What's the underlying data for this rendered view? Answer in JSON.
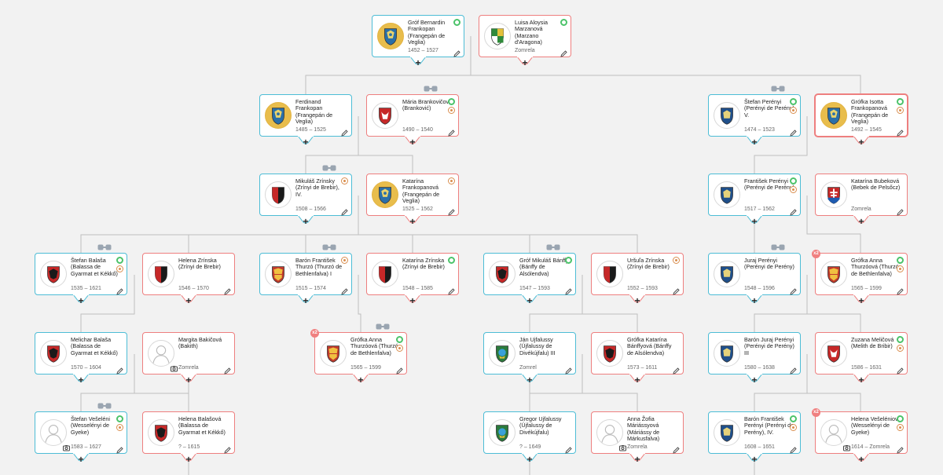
{
  "people": [
    {
      "id": "p1",
      "name": "Gróf Bernardin Frankopan (Frangepán de Veglia)",
      "dates": "1452 – 1527",
      "gender": "m",
      "crest": "gold-shield",
      "badges": [
        "green"
      ]
    },
    {
      "id": "p2",
      "name": "Luisa Aloysia Marzanová (Marzano d'Aragona)",
      "dates": "Zomrela",
      "gender": "f",
      "crest": "green-shield",
      "badges": [
        "green"
      ]
    },
    {
      "id": "p3",
      "name": "Ferdinand Frankopan (Frangepán de Veglia)",
      "dates": "1485 – 1525",
      "gender": "m",
      "crest": "gold-shield",
      "badges": []
    },
    {
      "id": "p4",
      "name": "Mária Brankovičová (Branković)",
      "dates": "1490 – 1540",
      "gender": "f",
      "crest": "red-eagle",
      "badges": [
        "green",
        "brown"
      ]
    },
    {
      "id": "p5",
      "name": "Štefan Perényi (Perényi de Perény), V.",
      "dates": "1474 – 1523",
      "gender": "m",
      "crest": "blue-shield",
      "badges": [
        "green",
        "brown"
      ]
    },
    {
      "id": "p6",
      "name": "Grófka Isotta Frankopanová (Frangepán de Veglia)",
      "dates": "1492 – 1545",
      "gender": "f",
      "crest": "gold-shield",
      "badges": [
        "green",
        "brown"
      ]
    },
    {
      "id": "p7",
      "name": "Mikuláš Zrínsky (Zrínyi de Brebir), IV.",
      "dates": "1508 – 1566",
      "gender": "m",
      "crest": "red-shield",
      "badges": [
        "brown-top"
      ]
    },
    {
      "id": "p8",
      "name": "Katarína Frankopanová (Frangepán de Veglia)",
      "dates": "1525 – 1562",
      "gender": "f",
      "crest": "gold-shield",
      "badges": [
        "brown-top"
      ]
    },
    {
      "id": "p9",
      "name": "František Perényi (Perényi de Perény)",
      "dates": "1517 – 1562",
      "gender": "m",
      "crest": "blue-shield",
      "badges": [
        "green",
        "brown"
      ]
    },
    {
      "id": "p10",
      "name": "Katarína Bubeková (Bebek de Pelsőcz)",
      "dates": "Zomrela",
      "gender": "f",
      "crest": "white-cross",
      "badges": []
    },
    {
      "id": "p11",
      "name": "Štefan Balaša (Balassa de Gyarmat et Kékkő)",
      "dates": "1535 – 1621",
      "gender": "m",
      "crest": "red-eagle2",
      "badges": [
        "green",
        "brown"
      ]
    },
    {
      "id": "p12",
      "name": "Helena Zrínska (Zrínyi de Brebir)",
      "dates": "1546 – 1570",
      "gender": "f",
      "crest": "red-shield",
      "badges": []
    },
    {
      "id": "p13",
      "name": "Barón František Thurzó (Thurzó de Bethlenfalva) I",
      "dates": "1515 – 1574",
      "gender": "m",
      "crest": "gold-lion",
      "badges": [
        "brown-top"
      ]
    },
    {
      "id": "p14",
      "name": "Katarína Zrínska (Zrínyi de Brebir)",
      "dates": "1548 – 1585",
      "gender": "f",
      "crest": "red-shield",
      "badges": [
        "green"
      ]
    },
    {
      "id": "p15",
      "name": "Gróf Mikuláš Bánffy (Bánffy de Alsólendva)",
      "dates": "1547 – 1593",
      "gender": "m",
      "crest": "red-eagle2",
      "badges": [
        "green"
      ]
    },
    {
      "id": "p16",
      "name": "Uršuľa Zrínska (Zrínyi de Brebir)",
      "dates": "1552 – 1593",
      "gender": "f",
      "crest": "red-shield",
      "badges": [
        "brown-top"
      ]
    },
    {
      "id": "p17",
      "name": "Juraj Perényi (Perényi de Perény)",
      "dates": "1548 – 1596",
      "gender": "m",
      "crest": "blue-shield",
      "badges": []
    },
    {
      "id": "p18",
      "name": "Grófka Anna Thurzóová (Thurzó de Bethlenfalva)",
      "dates": "1565 – 1599",
      "gender": "f",
      "crest": "gold-lion",
      "badges": [
        "green",
        "brown"
      ]
    },
    {
      "id": "p19",
      "name": "Melichar Balaša (Balassa de Gyarmat et Kékkő)",
      "dates": "1570 – 1604",
      "gender": "m",
      "crest": "red-eagle2",
      "badges": []
    },
    {
      "id": "p20",
      "name": "Margita Bakičová (Bakith)",
      "dates": "Zomrela",
      "gender": "f",
      "crest": "none",
      "badges": []
    },
    {
      "id": "p21",
      "name": "Grófka Anna Thurzóová (Thurzó de Bethlenfalva)",
      "dates": "1565 – 1599",
      "gender": "f",
      "crest": "gold-lion",
      "badges": [
        "green",
        "brown"
      ]
    },
    {
      "id": "p22",
      "name": "Ján Ujfalussy (Újfalussy de Divékújfalu) III",
      "dates": "Zomrel",
      "gender": "m",
      "crest": "green-round",
      "badges": []
    },
    {
      "id": "p23",
      "name": "Grófka Katarína Bánffyová (Bánffy de Alsólendva)",
      "dates": "1573 – 1611",
      "gender": "f",
      "crest": "red-eagle2",
      "badges": []
    },
    {
      "id": "p24",
      "name": "Barón Juraj Perényi (Perényi de Perény) III",
      "dates": "1580 – 1638",
      "gender": "m",
      "crest": "blue-shield",
      "badges": []
    },
    {
      "id": "p25",
      "name": "Zuzana Meličová (Melith de Bribir)",
      "dates": "1586 – 1631",
      "gender": "f",
      "crest": "red-eagle",
      "badges": [
        "green",
        "brown"
      ]
    },
    {
      "id": "p26",
      "name": "Štefan Vešeléni (Wesselényi de Gyeke)",
      "dates": "1583 – 1627",
      "gender": "m",
      "crest": "none",
      "badges": [
        "green",
        "brown"
      ]
    },
    {
      "id": "p27",
      "name": "Helena Balašová (Balassa de Gyarmat et Kékkő)",
      "dates": "? – 1615",
      "gender": "f",
      "crest": "red-eagle2",
      "badges": []
    },
    {
      "id": "p28",
      "name": "Gregor Ujfalussy (Újfalussy de Divékújfalu)",
      "dates": "? – 1649",
      "gender": "m",
      "crest": "green-round",
      "badges": []
    },
    {
      "id": "p29",
      "name": "Anna Žofia Máriássyová (Máriássy de Márkusfalva)",
      "dates": "Zomrela",
      "gender": "f",
      "crest": "none",
      "badges": []
    },
    {
      "id": "p30",
      "name": "Barón František Perényi (Perényi de Perény), IV.",
      "dates": "1608 – 1651",
      "gender": "m",
      "crest": "blue-shield",
      "badges": [
        "green",
        "brown"
      ]
    },
    {
      "id": "p31",
      "name": "Helena Vešeléniová (Wesselényi de Gyeke)",
      "dates": "1614 – Zomrela",
      "gender": "f",
      "crest": "none",
      "badges": [
        "green",
        "brown"
      ]
    }
  ],
  "badges": {
    "multi_marriage": "x2"
  },
  "icons": {
    "add": "plus-icon",
    "edit": "pencil-icon",
    "link": "link-icon",
    "photo": "camera-icon"
  },
  "colors": {
    "male_border": "#4dbdd6",
    "female_border": "#ee7f7f",
    "line": "#bfbfbf",
    "background": "#f2f2f2"
  }
}
